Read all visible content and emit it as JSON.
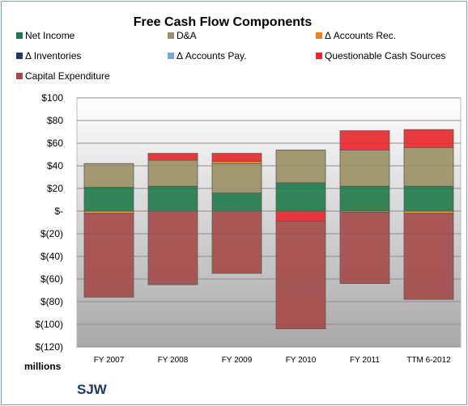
{
  "chart_data": {
    "type": "bar",
    "stacked": true,
    "title": "Free Cash Flow Components",
    "company": "SJW",
    "units_label": "millions",
    "categories": [
      "FY 2007",
      "FY 2008",
      "FY 2009",
      "FY 2010",
      "FY 2011",
      "TTM 6-2012"
    ],
    "ylim": [
      -120,
      100
    ],
    "yticks": [
      100,
      80,
      60,
      40,
      20,
      0,
      -20,
      -40,
      -60,
      -80,
      -100,
      -120
    ],
    "ytick_labels": [
      "$100",
      "$80",
      "$60",
      "$40",
      "$20",
      "$-",
      "$(20)",
      "$(40)",
      "$(60)",
      "$(80)",
      "$(100)",
      "$(120)"
    ],
    "grid": true,
    "legend_position": "top",
    "series": [
      {
        "name": "Net Income",
        "color": "#1e7a48",
        "values": [
          21,
          22,
          16,
          25,
          22,
          22
        ]
      },
      {
        "name": "D&A",
        "color": "#9a9063",
        "values": [
          21,
          23,
          26,
          29,
          32,
          34
        ]
      },
      {
        "name": "Δ Accounts Rec.",
        "color": "#e8861c",
        "values": [
          -2,
          0,
          2,
          0,
          -1,
          -2
        ]
      },
      {
        "name": "Δ Inventories",
        "color": "#1f3a5c",
        "values": [
          0,
          0,
          0,
          0,
          0,
          0
        ]
      },
      {
        "name": "Δ Accounts Pay.",
        "color": "#7ea6d8",
        "values": [
          0,
          0,
          0,
          0,
          0,
          0
        ]
      },
      {
        "name": "Questionable Cash Sources",
        "color": "#e8262a",
        "values": [
          0,
          6,
          7,
          -9,
          17,
          16
        ]
      },
      {
        "name": "Capital Expenditure",
        "color": "#a44a48",
        "values": [
          -74,
          -65,
          -55,
          -95,
          -63,
          -76
        ]
      }
    ]
  }
}
